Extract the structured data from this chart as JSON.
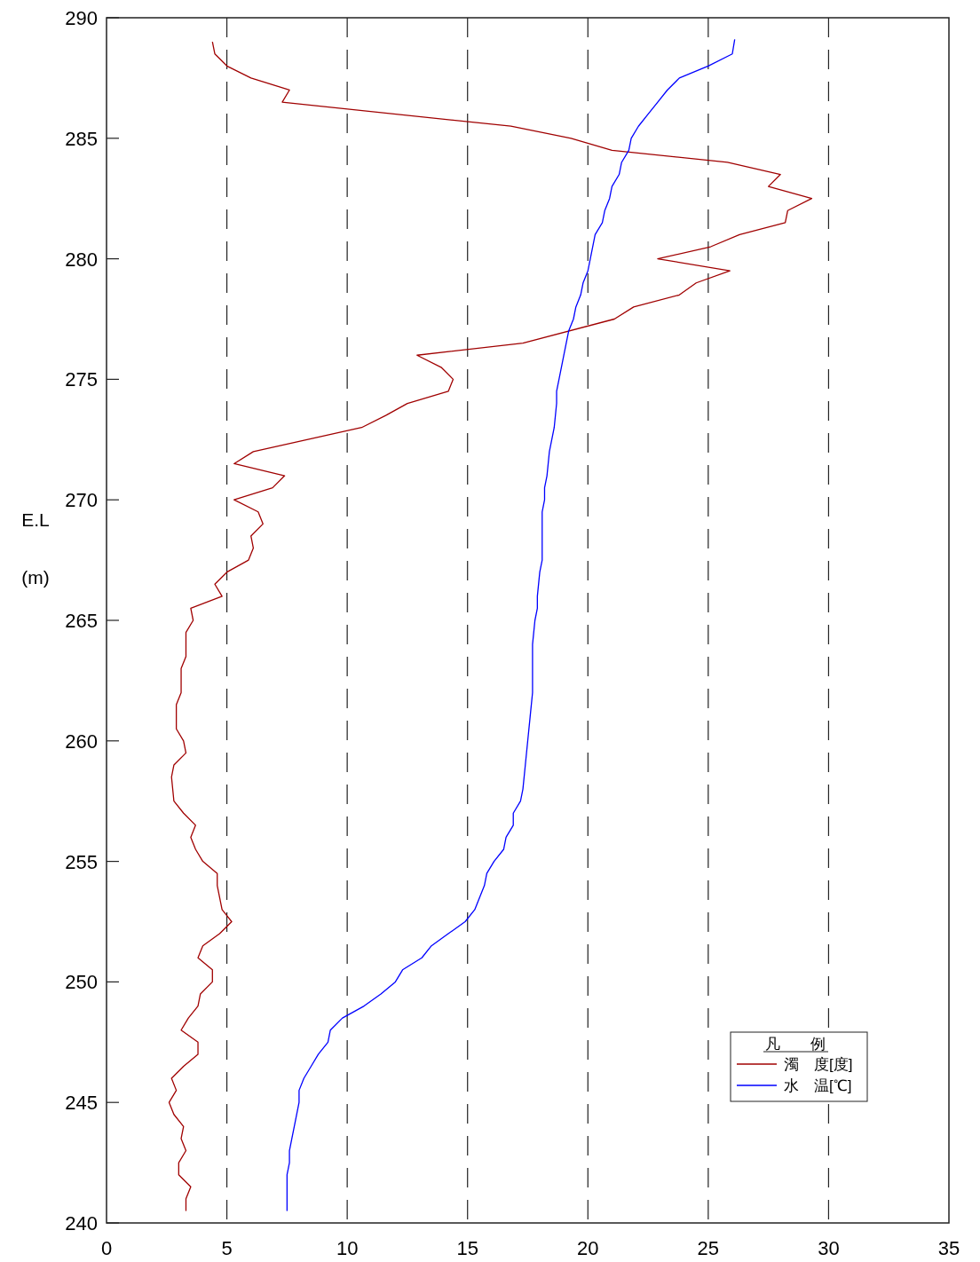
{
  "chart_data": {
    "type": "line",
    "ylabel": "E.L\n(m)",
    "legend_title": "凡　　例",
    "xlim": [
      0,
      35
    ],
    "xticks": [
      0,
      5,
      10,
      15,
      20,
      25,
      30,
      35
    ],
    "ylim": [
      240,
      290
    ],
    "yticks": [
      240,
      245,
      250,
      255,
      260,
      265,
      270,
      275,
      280,
      285,
      290
    ],
    "grid": "x",
    "legend": "bottom right",
    "line_style": "solid",
    "marker": "none",
    "series": [
      {
        "name": "濁　度[度]",
        "color": "#a00000",
        "x": [
          4.4,
          4.5,
          5.0,
          6.0,
          7.6,
          7.3,
          16.8,
          19.3,
          21.0,
          25.8,
          28.0,
          27.5,
          29.3,
          28.3,
          28.2,
          26.3,
          25.1,
          22.9,
          25.9,
          24.5,
          23.8,
          21.9,
          21.1,
          17.3,
          12.9,
          13.9,
          14.4,
          14.2,
          12.5,
          11.6,
          10.6,
          6.1,
          5.3,
          7.4,
          6.9,
          5.3,
          6.3,
          6.5,
          6.0,
          6.1,
          5.9,
          5.0,
          4.5,
          4.8,
          3.5,
          3.6,
          3.3,
          3.3,
          3.1,
          3.1,
          2.9,
          2.9,
          3.2,
          3.3,
          2.8,
          2.7,
          2.8,
          3.2,
          3.7,
          3.5,
          3.7,
          4.0,
          4.6,
          4.6,
          4.8,
          5.2,
          4.7,
          4.0,
          3.8,
          4.4,
          4.4,
          3.9,
          3.8,
          3.4,
          3.1,
          3.8,
          3.8,
          3.2,
          2.7,
          2.9,
          2.6,
          2.8,
          3.2,
          3.1,
          3.3,
          3.0,
          3.0,
          3.5,
          3.3,
          3.3
        ],
        "values": [
          289,
          288.5,
          288,
          287.5,
          287,
          286.5,
          285.5,
          285,
          284.5,
          284,
          283.5,
          283,
          282.5,
          282,
          281.5,
          281,
          280.5,
          280,
          279.5,
          279,
          278.5,
          278,
          277.5,
          276.5,
          276,
          275.5,
          275,
          274.5,
          274,
          273.5,
          273,
          272,
          271.5,
          271,
          270.5,
          270,
          269.5,
          269,
          268.5,
          268,
          267.5,
          267,
          266.5,
          266,
          265.5,
          265,
          264.5,
          263.5,
          263,
          262,
          261.5,
          260.5,
          260,
          259.5,
          259,
          258.5,
          257.5,
          257,
          256.5,
          256,
          255.5,
          255,
          254.5,
          254,
          253,
          252.5,
          252,
          251.5,
          251,
          250.5,
          250,
          249.5,
          249,
          248.5,
          248,
          247.5,
          247,
          246.5,
          246,
          245.5,
          245,
          244.5,
          244,
          243.5,
          243,
          242.5,
          242,
          241.5,
          241,
          240.5
        ]
      },
      {
        "name": "水　温[℃]",
        "color": "#0000ff",
        "x": [
          26.1,
          26.0,
          25.0,
          23.8,
          23.3,
          22.9,
          22.5,
          22.1,
          21.8,
          21.7,
          21.4,
          21.3,
          21.0,
          20.9,
          20.7,
          20.6,
          20.3,
          20.1,
          20.0,
          19.8,
          19.7,
          19.5,
          19.4,
          19.2,
          19.0,
          18.8,
          18.7,
          18.7,
          18.6,
          18.4,
          18.3,
          18.2,
          18.2,
          18.1,
          18.1,
          18.1,
          18.0,
          17.9,
          17.9,
          17.8,
          17.7,
          17.7,
          17.7,
          17.6,
          17.5,
          17.4,
          17.3,
          17.2,
          16.9,
          16.9,
          16.6,
          16.5,
          16.1,
          15.8,
          15.7,
          15.3,
          14.9,
          14.2,
          13.5,
          13.1,
          12.3,
          12.0,
          11.4,
          10.7,
          9.8,
          9.3,
          9.2,
          8.8,
          8.5,
          8.2,
          8.0,
          8.0,
          7.8,
          7.7,
          7.6,
          7.6,
          7.5,
          7.5,
          7.5
        ],
        "values": [
          289.1,
          288.5,
          288,
          287.5,
          287,
          286.5,
          286,
          285.5,
          285,
          284.5,
          284,
          283.5,
          283,
          282.5,
          282,
          281.5,
          281,
          280,
          279.5,
          279,
          278.5,
          278,
          277.5,
          277,
          276,
          275,
          274.5,
          274,
          273,
          272,
          271,
          270.5,
          270,
          269.5,
          268,
          267.5,
          267,
          266,
          265.5,
          265,
          264,
          263,
          262,
          261,
          260,
          259,
          258,
          257.5,
          257,
          256.5,
          256,
          255.5,
          255,
          254.5,
          254,
          253,
          252.5,
          252,
          251.5,
          251,
          250.5,
          250,
          249.5,
          249,
          248.5,
          248,
          247.5,
          247,
          246.5,
          246,
          245.5,
          245,
          244,
          243.5,
          243,
          242.5,
          242,
          241.5,
          240.5
        ]
      }
    ]
  }
}
